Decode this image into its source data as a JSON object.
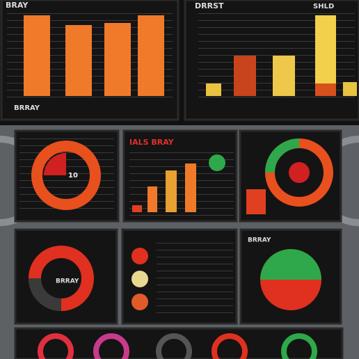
{
  "panels": {
    "top_left": {
      "title": "BRAY",
      "footer": "BRRAY"
    },
    "top_right": {
      "title": "DRRST",
      "corner": "SHLD"
    },
    "middle_center": {
      "title": "IALS BRAY"
    },
    "middle_left": {
      "label": "10"
    },
    "lower_left": {
      "label": "BRRAY"
    },
    "lower_right": {
      "label": "BRRAY"
    }
  }
}
